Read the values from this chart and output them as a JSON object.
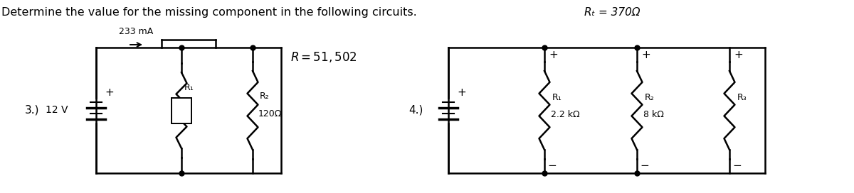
{
  "title": "Determine the value for the missing component in the following circuits.",
  "title_fontsize": 11.5,
  "background_color": "#ffffff",
  "text_color": "#000000",
  "circuit3_label": "3.)",
  "circuit4_label": "4.)",
  "circuit3_voltage": "12 V",
  "circuit3_current": "233 mA",
  "circuit3_R_label": "R = 51, 502",
  "circuit3_R1": "R₁",
  "circuit3_R2": "R₂",
  "circuit3_R2_val": "120Ω",
  "circuit4_RT": "Rₜ = 370Ω",
  "circuit4_R1": "R₁",
  "circuit4_R1_val": "2.2 kΩ",
  "circuit4_R2": "R₂",
  "circuit4_R2_val": "8 kΩ",
  "circuit4_R3": "R₃",
  "line_color": "#000000",
  "fig_width": 12.0,
  "fig_height": 2.72,
  "dpi": 100
}
